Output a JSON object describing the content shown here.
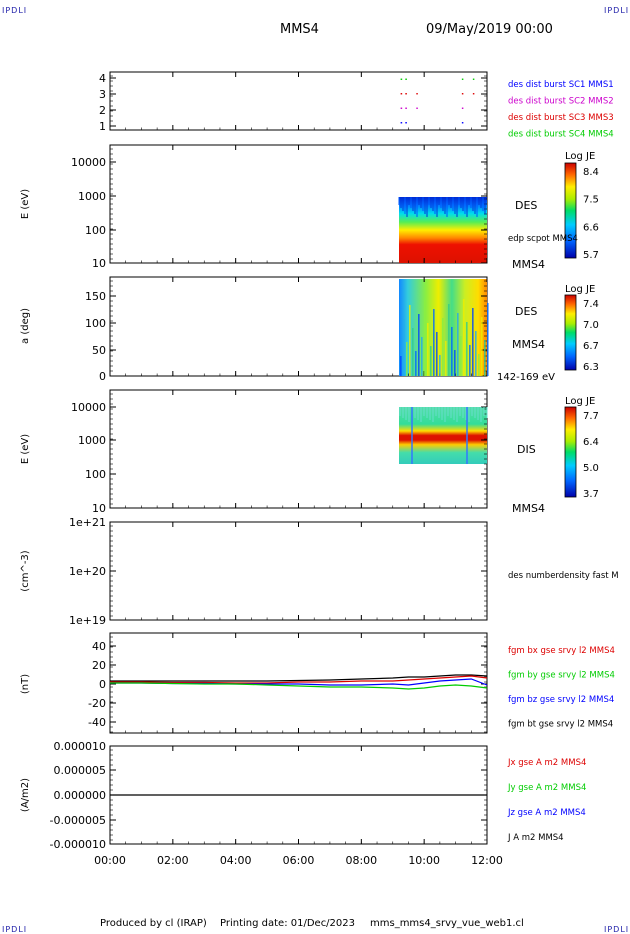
{
  "corner_labels": [
    "IPDLI",
    "IPDLI",
    "IPDLI",
    "IPDLI"
  ],
  "header": {
    "spacecraft": "MMS4",
    "date": "09/May/2019 00:00"
  },
  "footer": {
    "produced_by": "Produced by cl (IRAP)",
    "printing_date": "Printing date: 01/Dec/2023",
    "file": "mms_mms4_srvy_vue_web1.cl"
  },
  "x_axis": {
    "tick_labels": [
      "00:00",
      "02:00",
      "04:00",
      "06:00",
      "08:00",
      "10:00",
      "12:00"
    ],
    "range_hours": [
      0,
      12
    ]
  },
  "colors": {
    "blue": "#0000ff",
    "magenta": "#cc00cc",
    "red": "#dd0000",
    "green": "#00cc00",
    "black": "#000000"
  },
  "chart_data": [
    {
      "id": "burst-availability",
      "type": "scatter",
      "y_ticks": [
        "1",
        "2",
        "3",
        "4"
      ],
      "ylim": [
        0.5,
        4.5
      ],
      "legend": [
        {
          "label": "des dist burst SC1 MMS1",
          "color": "#0000ff"
        },
        {
          "label": "des dist burst SC2 MMS2",
          "color": "#cc00cc"
        },
        {
          "label": "des dist burst SC3 MMS3",
          "color": "#dd0000"
        },
        {
          "label": "des dist burst SC4 MMS4",
          "color": "#00cc00"
        }
      ],
      "segments": [
        {
          "y": 4,
          "color": "#00cc00",
          "x": [
            [
              9.25,
              9.3
            ],
            [
              9.4,
              9.45
            ],
            [
              11.2,
              11.22
            ],
            [
              11.55,
              11.58
            ]
          ]
        },
        {
          "y": 3,
          "color": "#dd0000",
          "x": [
            [
              9.25,
              9.3
            ],
            [
              9.4,
              9.45
            ],
            [
              9.75,
              9.78
            ],
            [
              11.2,
              11.22
            ],
            [
              11.55,
              11.58
            ]
          ]
        },
        {
          "y": 2,
          "color": "#cc00cc",
          "x": [
            [
              9.25,
              9.3
            ],
            [
              9.4,
              9.45
            ],
            [
              9.75,
              9.78
            ],
            [
              11.2,
              11.22
            ]
          ]
        },
        {
          "y": 1,
          "color": "#0000ff",
          "x": [
            [
              9.25,
              9.3
            ],
            [
              9.4,
              9.45
            ],
            [
              11.2,
              11.22
            ]
          ]
        }
      ]
    },
    {
      "id": "des-energy-spectrogram",
      "type": "heatmap",
      "ylabel": "E (eV)",
      "y_ticks": [
        "10",
        "100",
        "1000",
        "10000"
      ],
      "y_scale": "log",
      "ylim": [
        10,
        25000
      ],
      "data_x_range": [
        9.2,
        12.0
      ],
      "data_y_range": [
        10,
        1000
      ],
      "right_labels": [
        "DES",
        "edp scpot MMS4",
        "MMS4"
      ],
      "colorbar": {
        "title": "Log JE",
        "ticks": [
          "8.4",
          "7.5",
          "6.6",
          "5.7"
        ]
      }
    },
    {
      "id": "des-pitch-angle",
      "type": "heatmap",
      "ylabel": "a (deg)",
      "y_ticks": [
        "0",
        "50",
        "100",
        "150"
      ],
      "ylim": [
        0,
        180
      ],
      "data_x_range": [
        9.2,
        12.0
      ],
      "right_labels": [
        "DES",
        "MMS4",
        "142-169 eV"
      ],
      "colorbar": {
        "title": "Log JE",
        "ticks": [
          "7.4",
          "7.0",
          "6.7",
          "6.3"
        ]
      }
    },
    {
      "id": "dis-energy-spectrogram",
      "type": "heatmap",
      "ylabel": "E (eV)",
      "y_ticks": [
        "10",
        "100",
        "1000",
        "10000"
      ],
      "y_scale": "log",
      "ylim": [
        10,
        25000
      ],
      "data_x_range": [
        9.2,
        12.0
      ],
      "data_y_range": [
        200,
        10000
      ],
      "right_labels": [
        "DIS",
        "MMS4"
      ],
      "colorbar": {
        "title": "Log JE",
        "ticks": [
          "7.7",
          "6.4",
          "5.0",
          "3.7"
        ]
      }
    },
    {
      "id": "number-density",
      "type": "line",
      "ylabel": "(cm^-3)",
      "y_ticks": [
        "1e+19",
        "1e+20",
        "1e+21"
      ],
      "legend": [
        {
          "label": "des numberdensity fast M",
          "color": "#000000"
        }
      ]
    },
    {
      "id": "magnetic-field",
      "type": "line",
      "ylabel": "(nT)",
      "y_ticks": [
        "-40",
        "-20",
        "0",
        "20",
        "40"
      ],
      "ylim": [
        -50,
        50
      ],
      "legend": [
        {
          "label": "fgm bx gse srvy l2 MMS4",
          "color": "#dd0000"
        },
        {
          "label": "fgm by gse srvy l2 MMS4",
          "color": "#00cc00"
        },
        {
          "label": "fgm bz gse srvy l2 MMS4",
          "color": "#0000ff"
        },
        {
          "label": "fgm bt gse srvy l2 MMS4",
          "color": "#000000"
        }
      ],
      "series": [
        {
          "name": "fgm bt gse srvy l2 MMS4",
          "color": "#000000",
          "x": [
            0,
            1,
            2,
            3,
            4,
            5,
            6,
            7,
            8,
            9,
            9.5,
            10,
            10.5,
            11,
            11.5,
            12
          ],
          "values": [
            2,
            2,
            2,
            2,
            2,
            2,
            2.5,
            3,
            4,
            5,
            6,
            6,
            7,
            8,
            8,
            7
          ]
        },
        {
          "name": "fgm bx gse srvy l2 MMS4",
          "color": "#dd0000",
          "x": [
            0,
            1,
            2,
            3,
            4,
            5,
            6,
            7,
            8,
            9,
            9.5,
            10,
            10.5,
            11,
            11.5,
            12
          ],
          "values": [
            1,
            1,
            0.5,
            0.5,
            0,
            0,
            1,
            1,
            2,
            2,
            3,
            4,
            5,
            6,
            7,
            5
          ]
        },
        {
          "name": "fgm bz gse srvy l2 MMS4",
          "color": "#0000ff",
          "x": [
            0,
            1,
            2,
            3,
            4,
            5,
            6,
            7,
            8,
            9,
            9.5,
            10,
            10.5,
            11,
            11.5,
            12
          ],
          "values": [
            0,
            0,
            -0.5,
            -0.5,
            -1,
            -1,
            -1,
            -2,
            -2,
            -1,
            -2,
            0,
            2,
            3,
            4,
            -2
          ]
        },
        {
          "name": "fgm by gse srvy l2 MMS4",
          "color": "#00cc00",
          "x": [
            0,
            1,
            2,
            3,
            4,
            5,
            6,
            7,
            8,
            9,
            9.5,
            10,
            10.5,
            11,
            11.5,
            12
          ],
          "values": [
            0,
            0,
            -0.5,
            -1,
            -1,
            -2,
            -3,
            -4,
            -4,
            -5,
            -6,
            -5,
            -3,
            -2,
            -3,
            -5
          ]
        }
      ]
    },
    {
      "id": "current-density",
      "type": "line",
      "ylabel": "(A/m2)",
      "y_ticks": [
        "-0.000010",
        "-0.000005",
        "0.000000",
        "0.000005",
        "0.000010"
      ],
      "ylim": [
        -1e-05,
        1e-05
      ],
      "legend": [
        {
          "label": "Jx gse A m2 MMS4",
          "color": "#dd0000"
        },
        {
          "label": "Jy gse A m2 MMS4",
          "color": "#00cc00"
        },
        {
          "label": "Jz gse A m2 MMS4",
          "color": "#0000ff"
        },
        {
          "label": "J A m2 MMS4",
          "color": "#000000"
        }
      ],
      "series": [
        {
          "name": "J A m2 MMS4",
          "color": "#000000",
          "x": [
            0,
            2,
            4,
            6,
            8,
            10,
            12
          ],
          "values": [
            0,
            0,
            0,
            0,
            0,
            0,
            0
          ]
        }
      ]
    }
  ]
}
